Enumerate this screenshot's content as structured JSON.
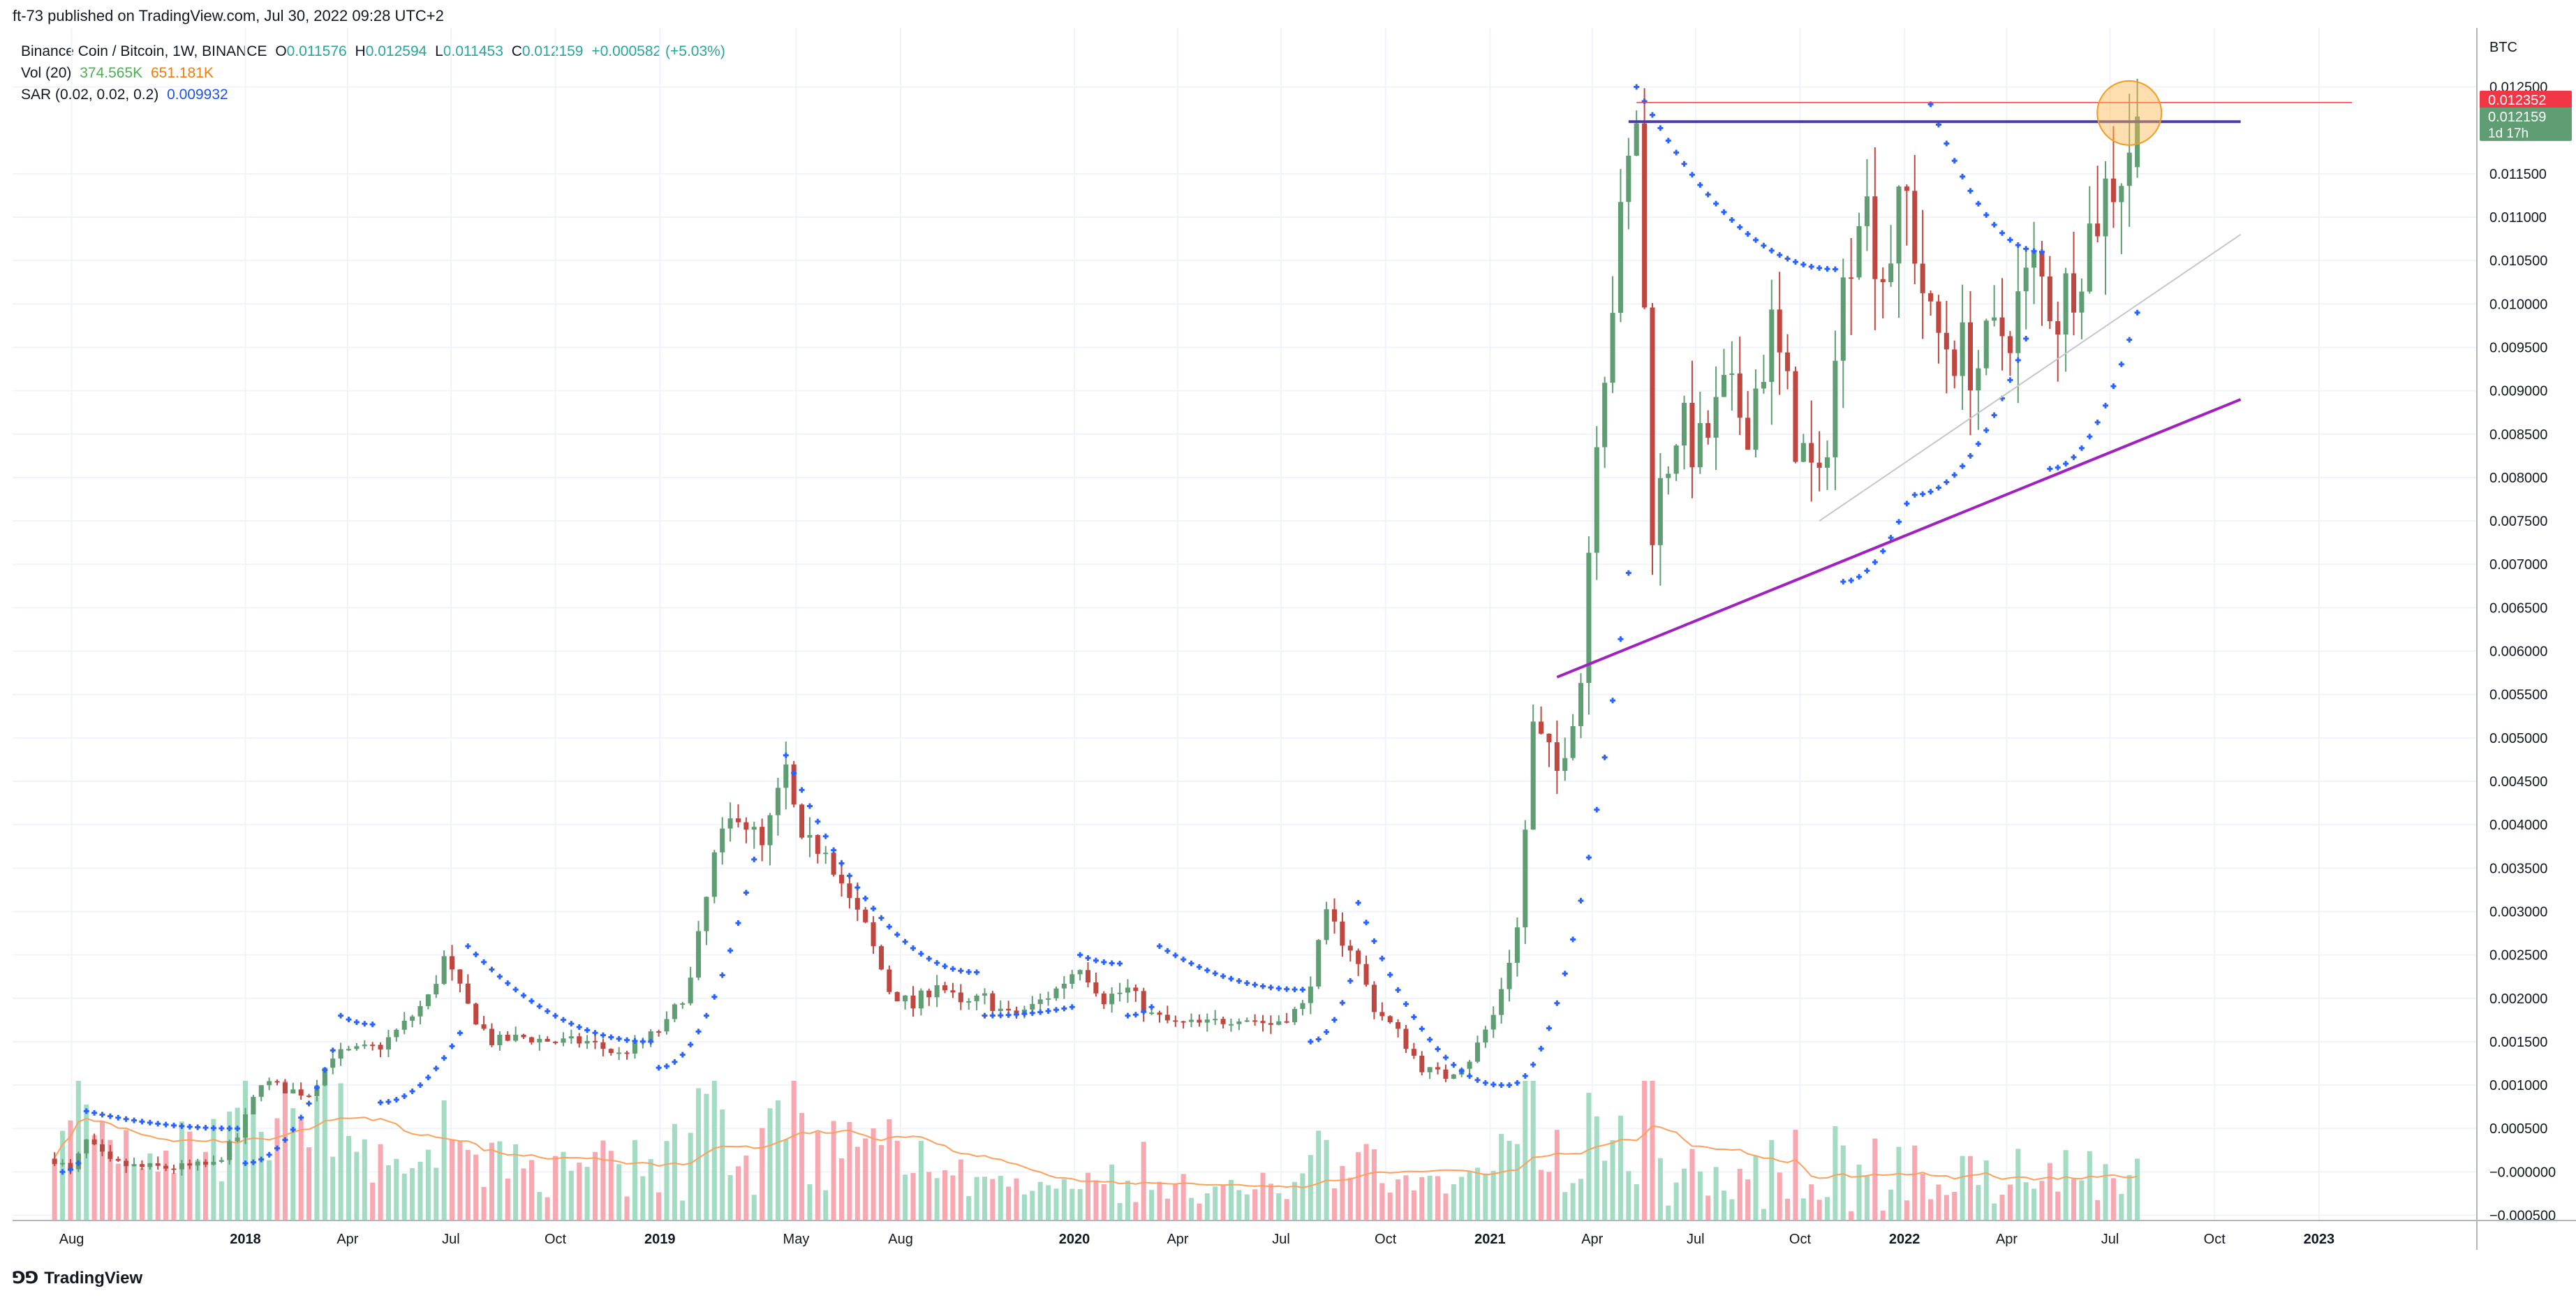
{
  "publisher": {
    "text": "ft-73 published on TradingView.com, Jul 30, 2022 09:28 UTC+2"
  },
  "legend": {
    "symbol": "Binance Coin / Bitcoin, 1W, BINANCE",
    "ohlc": {
      "open_label": "O",
      "open": "0.011576",
      "high_label": "H",
      "high": "0.012594",
      "low_label": "L",
      "low": "0.011453",
      "close_label": "C",
      "close": "0.012159",
      "change": "+0.000582 (+5.03%)"
    },
    "volume": {
      "label": "Vol (20)",
      "value": "374.565K",
      "ma": "651.181K"
    },
    "sar": {
      "label": "SAR (0.02, 0.02, 0.2)",
      "value": "0.009932"
    }
  },
  "footer": {
    "logo_text": "TradingView"
  },
  "colors": {
    "up": "#26a69a",
    "down": "#ef5350",
    "candle_up": "#5f9e73",
    "candle_down": "#c0473f",
    "vol_up": "#a3dcc3",
    "vol_down": "#f7a8b0",
    "sar": "#2962ff",
    "vol_ma": "#ff9f5a",
    "resistance": "#4a3ba8",
    "support": "#a020c0",
    "grid": "#f0f3fa",
    "price_label_red": "#f23645",
    "price_label_green": "#5f9e73",
    "highlight": "#ffb74d"
  },
  "chart_data": {
    "type": "candlestick",
    "title": "Binance Coin / Bitcoin, 1W, BINANCE",
    "currency_label": "BTC",
    "y_ticks": [
      "0.012500",
      "0.011500",
      "0.011000",
      "0.010500",
      "0.010000",
      "0.009500",
      "0.009000",
      "0.008500",
      "0.008000",
      "0.007500",
      "0.007000",
      "0.006500",
      "0.006000",
      "0.005500",
      "0.005000",
      "0.004500",
      "0.004000",
      "0.003500",
      "0.003000",
      "0.002500",
      "0.002000",
      "0.001500",
      "0.001000",
      "0.000500",
      "−0.000000",
      "−0.000500"
    ],
    "y_tick_values": [
      0.0125,
      0.0115,
      0.011,
      0.0105,
      0.01,
      0.0095,
      0.009,
      0.0085,
      0.008,
      0.0075,
      0.007,
      0.0065,
      0.006,
      0.0055,
      0.005,
      0.0045,
      0.004,
      0.0035,
      0.003,
      0.0025,
      0.002,
      0.0015,
      0.001,
      0.0005,
      0.0,
      -0.0005
    ],
    "ylim": [
      -0.00056,
      0.01318
    ],
    "price_labels": [
      {
        "value": 0.012352,
        "text": "0.012352",
        "style": "red"
      },
      {
        "value": 0.012159,
        "text": "0.012159",
        "style": "green",
        "countdown": "1d 17h"
      }
    ],
    "x_ticks": [
      {
        "label": "Aug",
        "date": "2017-08-01"
      },
      {
        "label": "2018",
        "date": "2018-01-01",
        "bold": true
      },
      {
        "label": "Apr",
        "date": "2018-04-01"
      },
      {
        "label": "Jul",
        "date": "2018-07-01"
      },
      {
        "label": "Oct",
        "date": "2018-10-01"
      },
      {
        "label": "2019",
        "date": "2019-01-01",
        "bold": true
      },
      {
        "label": "May",
        "date": "2019-05-01"
      },
      {
        "label": "Aug",
        "date": "2019-08-01"
      },
      {
        "label": "2020",
        "date": "2020-01-01",
        "bold": true
      },
      {
        "label": "Apr",
        "date": "2020-04-01"
      },
      {
        "label": "Jul",
        "date": "2020-07-01"
      },
      {
        "label": "Oct",
        "date": "2020-10-01"
      },
      {
        "label": "2021",
        "date": "2021-01-01",
        "bold": true
      },
      {
        "label": "Apr",
        "date": "2021-04-01"
      },
      {
        "label": "Jul",
        "date": "2021-07-01"
      },
      {
        "label": "Oct",
        "date": "2021-10-01"
      },
      {
        "label": "2022",
        "date": "2022-01-01",
        "bold": true
      },
      {
        "label": "Apr",
        "date": "2022-04-01"
      },
      {
        "label": "Jul",
        "date": "2022-07-01"
      },
      {
        "label": "Oct",
        "date": "2022-10-01"
      },
      {
        "label": "2023",
        "date": "2023-01-01",
        "bold": true
      }
    ],
    "xlim": [
      "2017-06-10",
      "2023-05-20"
    ],
    "close_anchors": [
      [
        "2017-07-17",
        0.00015
      ],
      [
        "2017-07-31",
        0.0
      ],
      [
        "2017-08-14",
        0.00035
      ],
      [
        "2017-09-04",
        0.0001
      ],
      [
        "2017-10-02",
        5e-05
      ],
      [
        "2017-11-06",
        5e-05
      ],
      [
        "2017-12-04",
        8e-05
      ],
      [
        "2017-12-25",
        0.0004
      ],
      [
        "2018-01-15",
        0.00105
      ],
      [
        "2018-02-05",
        0.00095
      ],
      [
        "2018-02-26",
        0.0009
      ],
      [
        "2018-03-19",
        0.00135
      ],
      [
        "2018-04-09",
        0.0014
      ],
      [
        "2018-04-30",
        0.00145
      ],
      [
        "2018-05-21",
        0.0017
      ],
      [
        "2018-06-11",
        0.002
      ],
      [
        "2018-06-25",
        0.00245
      ],
      [
        "2018-07-16",
        0.0019
      ],
      [
        "2018-08-06",
        0.0015
      ],
      [
        "2018-09-03",
        0.00155
      ],
      [
        "2018-10-01",
        0.0015
      ],
      [
        "2018-10-29",
        0.0015
      ],
      [
        "2018-11-26",
        0.00135
      ],
      [
        "2018-12-17",
        0.0015
      ],
      [
        "2019-01-07",
        0.0017
      ],
      [
        "2019-01-28",
        0.0022
      ],
      [
        "2019-02-18",
        0.0036
      ],
      [
        "2019-03-11",
        0.0042
      ],
      [
        "2019-04-01",
        0.0037
      ],
      [
        "2019-04-22",
        0.0046
      ],
      [
        "2019-05-06",
        0.0037
      ],
      [
        "2019-05-27",
        0.0038
      ],
      [
        "2019-06-17",
        0.0031
      ],
      [
        "2019-07-01",
        0.0028
      ],
      [
        "2019-07-22",
        0.0021
      ],
      [
        "2019-08-12",
        0.0019
      ],
      [
        "2019-09-02",
        0.0022
      ],
      [
        "2019-09-23",
        0.0019
      ],
      [
        "2019-10-14",
        0.002
      ],
      [
        "2019-11-04",
        0.0018
      ],
      [
        "2019-11-25",
        0.0019
      ],
      [
        "2019-12-16",
        0.0021
      ],
      [
        "2020-01-06",
        0.0024
      ],
      [
        "2020-01-27",
        0.002
      ],
      [
        "2020-02-17",
        0.0021
      ],
      [
        "2020-03-09",
        0.0018
      ],
      [
        "2020-03-30",
        0.0017
      ],
      [
        "2020-04-27",
        0.0017
      ],
      [
        "2020-05-25",
        0.0018
      ],
      [
        "2020-06-22",
        0.0017
      ],
      [
        "2020-07-20",
        0.0019
      ],
      [
        "2020-08-10",
        0.0029
      ],
      [
        "2020-08-31",
        0.0026
      ],
      [
        "2020-09-21",
        0.0019
      ],
      [
        "2020-10-12",
        0.0016
      ],
      [
        "2020-11-02",
        0.0012
      ],
      [
        "2020-11-23",
        0.0011
      ],
      [
        "2020-12-14",
        0.0013
      ],
      [
        "2021-01-04",
        0.0018
      ],
      [
        "2021-01-25",
        0.0028
      ],
      [
        "2021-02-08",
        0.0051
      ],
      [
        "2021-03-01",
        0.0046
      ],
      [
        "2021-03-22",
        0.0057
      ],
      [
        "2021-04-05",
        0.0087
      ],
      [
        "2021-04-26",
        0.0108
      ],
      [
        "2021-05-10",
        0.0122
      ],
      [
        "2021-05-24",
        0.0075
      ],
      [
        "2021-06-14",
        0.0086
      ],
      [
        "2021-07-05",
        0.0083
      ],
      [
        "2021-07-26",
        0.0089
      ],
      [
        "2021-08-16",
        0.0087
      ],
      [
        "2021-09-06",
        0.0097
      ],
      [
        "2021-09-27",
        0.0085
      ],
      [
        "2021-10-18",
        0.0078
      ],
      [
        "2021-11-08",
        0.0101
      ],
      [
        "2021-11-22",
        0.0114
      ],
      [
        "2021-12-13",
        0.0104
      ],
      [
        "2022-01-03",
        0.0112
      ],
      [
        "2022-01-24",
        0.0097
      ],
      [
        "2022-02-14",
        0.0095
      ],
      [
        "2022-03-07",
        0.0093
      ],
      [
        "2022-04-04",
        0.0098
      ],
      [
        "2022-04-25",
        0.0104
      ],
      [
        "2022-05-16",
        0.0099
      ],
      [
        "2022-06-06",
        0.0106
      ],
      [
        "2022-06-27",
        0.0113
      ],
      [
        "2022-07-11",
        0.0116
      ],
      [
        "2022-07-25",
        0.012159
      ]
    ],
    "sar_segments": [
      {
        "pos": "below",
        "from": "2017-07-24",
        "to": "2017-08-07",
        "level": [
          0.0,
          0.0001
        ]
      },
      {
        "pos": "above",
        "from": "2017-08-14",
        "to": "2017-12-25",
        "level": [
          0.0007,
          0.0005
        ]
      },
      {
        "pos": "below",
        "from": "2018-01-01",
        "to": "2018-03-19",
        "level": [
          0.0001,
          0.0014
        ]
      },
      {
        "pos": "above",
        "from": "2018-03-26",
        "to": "2018-04-23",
        "level": [
          0.0018,
          0.0017
        ]
      },
      {
        "pos": "below",
        "from": "2018-04-30",
        "to": "2018-07-09",
        "level": [
          0.0008,
          0.0016
        ]
      },
      {
        "pos": "above",
        "from": "2018-07-16",
        "to": "2018-12-24",
        "level": [
          0.0026,
          0.0015
        ]
      },
      {
        "pos": "below",
        "from": "2018-12-31",
        "to": "2019-03-25",
        "level": [
          0.0012,
          0.0036
        ]
      },
      {
        "pos": "above",
        "from": "2019-04-22",
        "to": "2019-10-07",
        "level": [
          0.0048,
          0.0023
        ]
      },
      {
        "pos": "below",
        "from": "2019-10-14",
        "to": "2019-12-30",
        "level": [
          0.0018,
          0.0019
        ]
      },
      {
        "pos": "above",
        "from": "2020-01-06",
        "to": "2020-02-10",
        "level": [
          0.0025,
          0.0024
        ]
      },
      {
        "pos": "below",
        "from": "2020-02-17",
        "to": "2020-03-09",
        "level": [
          0.0018,
          0.0019
        ]
      },
      {
        "pos": "above",
        "from": "2020-03-16",
        "to": "2020-07-20",
        "level": [
          0.0026,
          0.0021
        ]
      },
      {
        "pos": "below",
        "from": "2020-07-27",
        "to": "2020-08-31",
        "level": [
          0.0015,
          0.0022
        ]
      },
      {
        "pos": "above",
        "from": "2020-09-07",
        "to": "2021-01-11",
        "level": [
          0.0031,
          0.001
        ]
      },
      {
        "pos": "below",
        "from": "2021-01-18",
        "to": "2021-05-03",
        "level": [
          0.001,
          0.0069
        ]
      },
      {
        "pos": "above",
        "from": "2021-05-10",
        "to": "2021-11-01",
        "level": [
          0.0125,
          0.0104
        ]
      },
      {
        "pos": "below",
        "from": "2021-11-08",
        "to": "2022-01-03",
        "level": [
          0.0068,
          0.0077
        ]
      },
      {
        "pos": "below",
        "from": "2022-01-10",
        "to": "2022-04-18",
        "level": [
          0.0078,
          0.0096
        ]
      },
      {
        "pos": "above",
        "from": "2022-01-24",
        "to": "2022-05-02",
        "level": [
          0.0123,
          0.0106
        ]
      },
      {
        "pos": "below",
        "from": "2022-05-09",
        "to": "2022-07-25",
        "level": [
          0.0081,
          0.0099
        ]
      }
    ],
    "trendlines": [
      {
        "name": "resistance",
        "from": [
          "2021-05-03",
          0.0121
        ],
        "to": [
          "2022-10-24",
          0.0121
        ]
      },
      {
        "name": "ascending-support",
        "from": [
          "2021-03-01",
          0.0057
        ],
        "to": [
          "2022-10-24",
          0.0089
        ]
      },
      {
        "name": "thin-channel",
        "from": [
          "2021-10-18",
          0.0075
        ],
        "to": [
          "2022-10-24",
          0.0108
        ]
      },
      {
        "name": "high-line",
        "from": [
          "2021-05-10",
          0.01232
        ],
        "to": [
          "2023-01-30",
          0.01232
        ]
      }
    ],
    "highlight_circle": {
      "date": "2022-07-18",
      "value": 0.0122
    },
    "volume_axis_max": 17
  }
}
